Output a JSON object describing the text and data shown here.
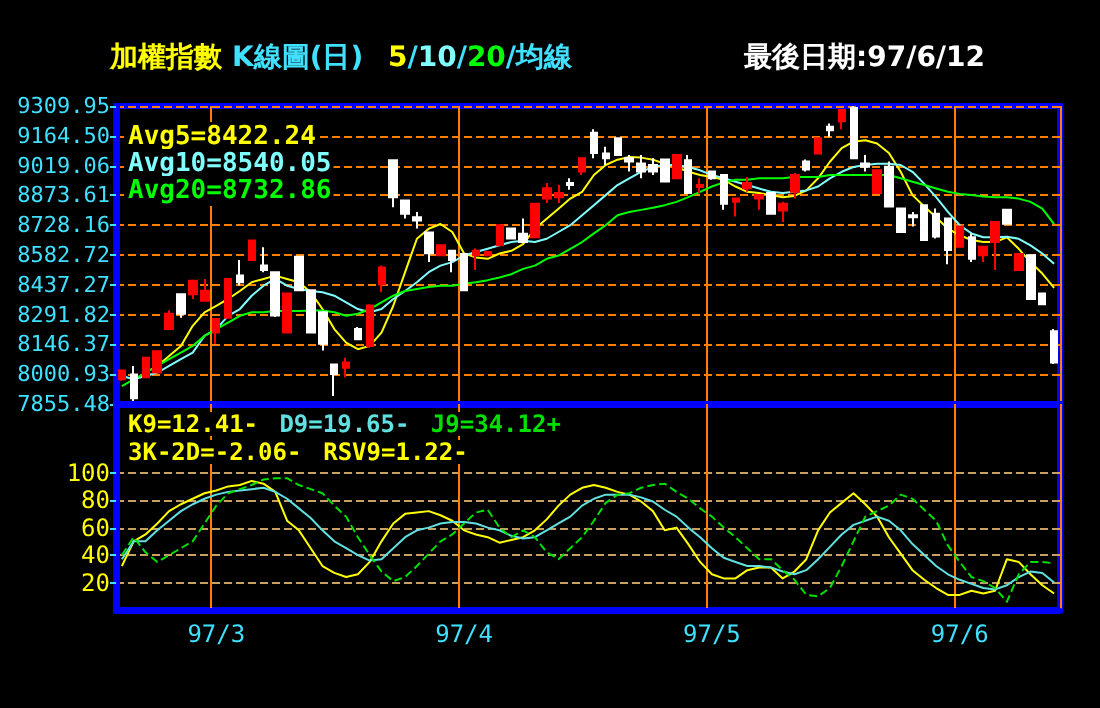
{
  "chart_data": [
    {
      "type": "candlestick",
      "title": "加權指數",
      "subtitle": "K線圖(日)",
      "categories": [
        null,
        null,
        null,
        null,
        null,
        null,
        null,
        null,
        null,
        null,
        null,
        null,
        null,
        null,
        null,
        null,
        null,
        null,
        null,
        null,
        null,
        null,
        null,
        null,
        null,
        null,
        null,
        null,
        null,
        null,
        null,
        null,
        null,
        null,
        null,
        null,
        null,
        null,
        null,
        null,
        null,
        null,
        null,
        null,
        null,
        null,
        null,
        null,
        null,
        null,
        null,
        null,
        null,
        null,
        null,
        null,
        null,
        null,
        null,
        null,
        null,
        null,
        null,
        null,
        null,
        null,
        null,
        null,
        null,
        null,
        null,
        null,
        null,
        null,
        null,
        null,
        null,
        null,
        null,
        null
      ],
      "ohlc": [
        [
          7976,
          8019,
          7969,
          8019
        ],
        [
          7999,
          8041,
          7870,
          7884
        ],
        [
          7986,
          8081,
          7986,
          8081
        ],
        [
          8009,
          8113,
          8009,
          8113
        ],
        [
          8221,
          8313,
          8221,
          8296
        ],
        [
          8391,
          8391,
          8277,
          8296
        ],
        [
          8391,
          8457,
          8368,
          8457
        ],
        [
          8359,
          8466,
          8359,
          8408
        ],
        [
          8205,
          8270,
          8149,
          8270
        ],
        [
          8277,
          8466,
          8277,
          8466
        ],
        [
          8483,
          8558,
          8434,
          8450
        ],
        [
          8558,
          8653,
          8558,
          8653
        ],
        [
          8532,
          8620,
          8499,
          8509
        ],
        [
          8499,
          8499,
          8280,
          8287
        ],
        [
          8205,
          8395,
          8205,
          8395
        ],
        [
          8574,
          8574,
          8411,
          8411
        ],
        [
          8411,
          8411,
          8205,
          8205
        ],
        [
          8303,
          8303,
          8117,
          8149
        ],
        [
          8048,
          8048,
          7894,
          8002
        ],
        [
          8032,
          8081,
          7986,
          8058
        ],
        [
          8221,
          8231,
          8172,
          8172
        ],
        [
          8139,
          8342,
          8130,
          8336
        ],
        [
          8440,
          8532,
          8401,
          8522
        ],
        [
          9045,
          9045,
          8816,
          8865
        ],
        [
          8849,
          8849,
          8761,
          8784
        ],
        [
          8767,
          8793,
          8712,
          8751
        ],
        [
          8692,
          8692,
          8548,
          8591
        ],
        [
          8581,
          8630,
          8581,
          8630
        ],
        [
          8604,
          8604,
          8499,
          8558
        ],
        [
          8587,
          8587,
          8411,
          8411
        ],
        [
          8581,
          8614,
          8509,
          8604
        ],
        [
          8581,
          8604,
          8575,
          8597
        ],
        [
          8630,
          8728,
          8630,
          8728
        ],
        [
          8712,
          8712,
          8663,
          8663
        ],
        [
          8686,
          8761,
          8646,
          8646
        ],
        [
          8669,
          8833,
          8669,
          8833
        ],
        [
          8859,
          8934,
          8836,
          8908
        ],
        [
          8865,
          8924,
          8836,
          8885
        ],
        [
          8934,
          8957,
          8901,
          8924
        ],
        [
          8990,
          9055,
          8973,
          9055
        ],
        [
          9179,
          9196,
          9055,
          9081
        ],
        [
          9078,
          9111,
          9022,
          9055
        ],
        [
          9153,
          9153,
          9071,
          9071
        ],
        [
          9055,
          9071,
          8990,
          9039
        ],
        [
          9029,
          9071,
          8957,
          8990
        ],
        [
          9022,
          9055,
          8973,
          8990
        ],
        [
          9049,
          9049,
          8941,
          8941
        ],
        [
          8957,
          9071,
          8957,
          9071
        ],
        [
          9045,
          9071,
          8885,
          8885
        ],
        [
          8914,
          8957,
          8885,
          8924
        ],
        [
          8990,
          8990,
          8950,
          8957
        ],
        [
          8973,
          8973,
          8803,
          8833
        ],
        [
          8843,
          8859,
          8771,
          8859
        ],
        [
          8908,
          8964,
          8892,
          8934
        ],
        [
          8859,
          8875,
          8803,
          8875
        ],
        [
          8885,
          8885,
          8784,
          8784
        ],
        [
          8800,
          8843,
          8744,
          8833
        ],
        [
          8892,
          8983,
          8859,
          8973
        ],
        [
          9039,
          9049,
          8990,
          9000
        ],
        [
          9078,
          9153,
          9078,
          9153
        ],
        [
          9209,
          9225,
          9160,
          9192
        ],
        [
          9235,
          9291,
          9196,
          9291
        ],
        [
          9300,
          9309,
          9055,
          9055
        ],
        [
          9029,
          9071,
          8990,
          9013
        ],
        [
          8885,
          8996,
          8885,
          8996
        ],
        [
          9013,
          9039,
          8820,
          8820
        ],
        [
          8810,
          8810,
          8695,
          8695
        ],
        [
          8777,
          8793,
          8722,
          8767
        ],
        [
          8826,
          8826,
          8656,
          8656
        ],
        [
          8784,
          8810,
          8663,
          8673
        ],
        [
          8761,
          8761,
          8538,
          8607
        ],
        [
          8623,
          8722,
          8623,
          8722
        ],
        [
          8669,
          8686,
          8548,
          8565
        ],
        [
          8581,
          8623,
          8548,
          8623
        ],
        [
          8646,
          8744,
          8509,
          8744
        ],
        [
          8803,
          8803,
          8735,
          8735
        ],
        [
          8509,
          8587,
          8509,
          8587
        ],
        [
          8581,
          8581,
          8368,
          8368
        ],
        [
          8395,
          8395,
          8342,
          8342
        ],
        [
          8211,
          8221,
          8051,
          8058
        ]
      ],
      "colors": [
        "#ff0000",
        "#ffffff",
        "#ff0000",
        "#ff0000",
        "#ff0000",
        "#ffffff",
        "#ff0000",
        "#ff0000",
        "#ff0000",
        "#ff0000",
        "#ffffff",
        "#ff0000",
        "#ffffff",
        "#ffffff",
        "#ff0000",
        "#ffffff",
        "#ffffff",
        "#ffffff",
        "#ffffff",
        "#ff0000",
        "#ffffff",
        "#ff0000",
        "#ff0000",
        "#ffffff",
        "#ffffff",
        "#ffffff",
        "#ffffff",
        "#ff0000",
        "#ffffff",
        "#ffffff",
        "#ff0000",
        "#ff0000",
        "#ff0000",
        "#ffffff",
        "#ffffff",
        "#ff0000",
        "#ff0000",
        "#ff0000",
        "#ffffff",
        "#ff0000",
        "#ffffff",
        "#ffffff",
        "#ffffff",
        "#ffffff",
        "#ffffff",
        "#ffffff",
        "#ffffff",
        "#ff0000",
        "#ffffff",
        "#ff0000",
        "#ffffff",
        "#ffffff",
        "#ff0000",
        "#ff0000",
        "#ff0000",
        "#ffffff",
        "#ff0000",
        "#ff0000",
        "#ffffff",
        "#ff0000",
        "#ffffff",
        "#ff0000",
        "#ffffff",
        "#ffffff",
        "#ff0000",
        "#ffffff",
        "#ffffff",
        "#ffffff",
        "#ffffff",
        "#ffffff",
        "#ffffff",
        "#ff0000",
        "#ffffff",
        "#ff0000",
        "#ff0000",
        "#ffffff",
        "#ff0000",
        "#ffffff",
        "#ffffff",
        "#ffffff"
      ],
      "series": [
        {
          "type": "line",
          "color": "#ffff00",
          "values": [
            null,
            null,
            8008,
            8041,
            8090,
            8139,
            8237,
            8303,
            8335,
            8368,
            8407,
            8450,
            8466,
            8482,
            8466,
            8450,
            8401,
            8319,
            8221,
            8155,
            8123,
            8139,
            8204,
            8335,
            8499,
            8662,
            8711,
            8734,
            8695,
            8590,
            8571,
            8564,
            8590,
            8603,
            8636,
            8711,
            8760,
            8809,
            8858,
            8891,
            8973,
            9022,
            9048,
            9061,
            9058,
            9048,
            9028,
            9012,
            8989,
            8973,
            8963,
            8950,
            8917,
            8891,
            8885,
            8875,
            8865,
            8871,
            8898,
            8957,
            9038,
            9104,
            9136,
            9143,
            9127,
            9081,
            8989,
            8875,
            8819,
            8767,
            8711,
            8679,
            8656,
            8646,
            8646,
            8669,
            8613,
            8548,
            8492,
            8422
          ]
        },
        {
          "type": "line",
          "color": "#80ffff",
          "values": [
            7992,
            7976,
            7992,
            8008,
            8041,
            8074,
            8106,
            8188,
            8221,
            8286,
            8319,
            8384,
            8433,
            8466,
            8433,
            8417,
            8407,
            8401,
            8384,
            8352,
            8319,
            8303,
            8319,
            8368,
            8407,
            8450,
            8499,
            8531,
            8548,
            8580,
            8597,
            8613,
            8630,
            8646,
            8652,
            8646,
            8662,
            8695,
            8728,
            8777,
            8826,
            8875,
            8924,
            8957,
            8989,
            9012,
            9022,
            9022,
            9012,
            8996,
            8973,
            8957,
            8940,
            8924,
            8907,
            8891,
            8885,
            8891,
            8898,
            8917,
            8957,
            8989,
            9012,
            9022,
            9028,
            9028,
            9022,
            8989,
            8930,
            8865,
            8793,
            8728,
            8688,
            8669,
            8669,
            8672,
            8662,
            8630,
            8590,
            8540
          ]
        },
        {
          "type": "line",
          "color": "#00ff00",
          "values": [
            7943,
            7976,
            8008,
            8041,
            8074,
            8106,
            8139,
            8188,
            8221,
            8253,
            8286,
            8303,
            8303,
            8309,
            8309,
            8309,
            8312,
            8312,
            8303,
            8286,
            8296,
            8319,
            8352,
            8384,
            8407,
            8417,
            8427,
            8433,
            8433,
            8443,
            8450,
            8460,
            8473,
            8489,
            8515,
            8531,
            8564,
            8580,
            8613,
            8646,
            8688,
            8728,
            8777,
            8793,
            8803,
            8813,
            8826,
            8842,
            8865,
            8891,
            8917,
            8937,
            8950,
            8950,
            8957,
            8957,
            8957,
            8963,
            8963,
            8963,
            8973,
            8973,
            8973,
            8973,
            8973,
            8973,
            8957,
            8940,
            8924,
            8907,
            8891,
            8881,
            8875,
            8868,
            8865,
            8865,
            8858,
            8842,
            8809,
            8733
          ]
        }
      ],
      "ylim": [
        7855.48,
        9309.95
      ],
      "yticks": [
        {
          "value": 7855.48,
          "label": "7855.48"
        },
        {
          "value": 8000.93,
          "label": "8000.93"
        },
        {
          "value": 8146.37,
          "label": "8146.37"
        },
        {
          "value": 8291.82,
          "label": "8291.82"
        },
        {
          "value": 8437.27,
          "label": "8437.27"
        },
        {
          "value": 8582.72,
          "label": "8582.72"
        },
        {
          "value": 8728.16,
          "label": "8728.16"
        },
        {
          "value": 8873.61,
          "label": "8873.61"
        },
        {
          "value": 9019.06,
          "label": "9019.06"
        },
        {
          "value": 9164.5,
          "label": "9164.50"
        },
        {
          "value": 9309.95,
          "label": "9309.95"
        }
      ],
      "grid": true,
      "tick_labels": "y",
      "marker": "none",
      "line_style": "solid",
      "annotations": [
        "5/10/20/均線",
        "最後日期:97/6/12",
        "Avg5=8422.24",
        "Avg10=8540.05",
        "Avg20=8732.86"
      ]
    },
    {
      "type": "line",
      "categories": [
        null,
        null,
        null,
        null,
        null,
        null,
        null,
        null,
        "97/3",
        null,
        null,
        null,
        null,
        null,
        null,
        null,
        null,
        null,
        null,
        null,
        null,
        null,
        null,
        null,
        null,
        null,
        null,
        null,
        null,
        "97/4",
        null,
        null,
        null,
        null,
        null,
        null,
        null,
        null,
        null,
        null,
        null,
        null,
        null,
        null,
        null,
        null,
        null,
        null,
        null,
        null,
        "97/5",
        null,
        null,
        null,
        null,
        null,
        null,
        null,
        null,
        null,
        null,
        null,
        null,
        null,
        null,
        null,
        null,
        null,
        null,
        null,
        null,
        "97/6",
        null,
        null,
        null,
        null,
        null,
        null,
        null,
        null
      ],
      "series": [
        {
          "color": "#ffff00",
          "values": [
            32,
            50,
            55,
            63,
            72,
            77,
            81,
            85,
            87,
            90,
            91,
            94,
            92,
            86,
            65,
            58,
            45,
            32,
            27,
            24,
            26,
            35,
            50,
            63,
            70,
            71,
            72,
            69,
            65,
            58,
            55,
            53,
            49,
            51,
            53,
            58,
            66,
            76,
            84,
            89,
            91,
            89,
            86,
            84,
            79,
            72,
            58,
            60,
            48,
            35,
            26,
            23,
            23,
            29,
            31,
            31,
            23,
            28,
            37,
            58,
            71,
            78,
            85,
            77,
            68,
            53,
            41,
            29,
            22,
            16,
            11,
            11,
            14,
            12,
            14,
            37,
            35,
            26,
            18,
            12
          ]
        },
        {
          "color": "#60e0e0",
          "values": [
            37,
            50,
            50,
            58,
            65,
            72,
            77,
            81,
            84,
            86,
            87,
            88,
            89,
            86,
            81,
            74,
            67,
            58,
            50,
            45,
            40,
            36,
            37,
            45,
            53,
            58,
            60,
            63,
            64,
            64,
            63,
            60,
            58,
            54,
            52,
            53,
            58,
            63,
            68,
            76,
            81,
            84,
            84,
            84,
            82,
            79,
            73,
            68,
            60,
            53,
            45,
            38,
            35,
            32,
            32,
            31,
            28,
            26,
            29,
            37,
            46,
            55,
            62,
            65,
            68,
            65,
            58,
            48,
            40,
            32,
            26,
            22,
            19,
            16,
            15,
            18,
            24,
            28,
            27,
            20
          ]
        },
        {
          "color": "#00e000",
          "line_style": "dashed",
          "values": [
            40,
            53,
            42,
            35,
            40,
            45,
            50,
            63,
            76,
            85,
            88,
            91,
            95,
            96,
            96,
            91,
            88,
            85,
            76,
            68,
            53,
            40,
            28,
            21,
            24,
            32,
            41,
            50,
            55,
            63,
            71,
            73,
            60,
            53,
            58,
            53,
            42,
            37,
            45,
            53,
            65,
            78,
            84,
            85,
            89,
            91,
            92,
            86,
            81,
            74,
            68,
            60,
            53,
            45,
            37,
            37,
            29,
            22,
            11,
            10,
            16,
            32,
            50,
            68,
            72,
            76,
            84,
            81,
            73,
            65,
            47,
            35,
            24,
            21,
            16,
            6,
            26,
            35,
            35,
            34
          ]
        }
      ],
      "ylim": [
        0,
        150
      ],
      "yticks": [
        20,
        40,
        60,
        80,
        100
      ],
      "grid": true,
      "marker": "none",
      "line_style": "solid",
      "annotations": [
        "K9=12.41-",
        "D9=19.65-",
        "J9=34.12+",
        "3K-2D=-2.06-",
        "RSV9=1.22-"
      ]
    }
  ]
}
